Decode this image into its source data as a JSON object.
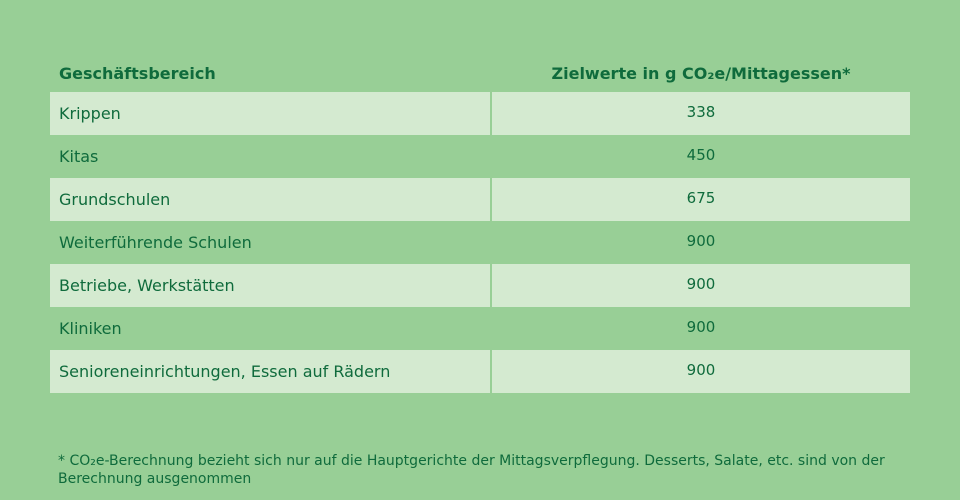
{
  "table": {
    "header": {
      "col_a": "Geschäftsbereich",
      "col_b": "Zielwerte in g CO₂e/Mittagessen*"
    },
    "rows": [
      {
        "label": "Krippen",
        "value": "338"
      },
      {
        "label": "Kitas",
        "value": "450"
      },
      {
        "label": "Grundschulen",
        "value": "675"
      },
      {
        "label": "Weiterführende Schulen",
        "value": "900"
      },
      {
        "label": "Betriebe, Werkstätten",
        "value": "900"
      },
      {
        "label": "Kliniken",
        "value": "900"
      },
      {
        "label": "Senioreneinrichtungen, Essen auf Rädern",
        "value": "900"
      }
    ]
  },
  "footnote": "* CO₂e-Berechnung bezieht sich nur auf die Hauptgerichte der Mittagsverpflegung. Desserts, Salate, etc. sind von der Berechnung ausgenommen",
  "colors": {
    "background": "#98cf96",
    "row_shade": "#d4ead0",
    "text": "#0f6b3c"
  }
}
